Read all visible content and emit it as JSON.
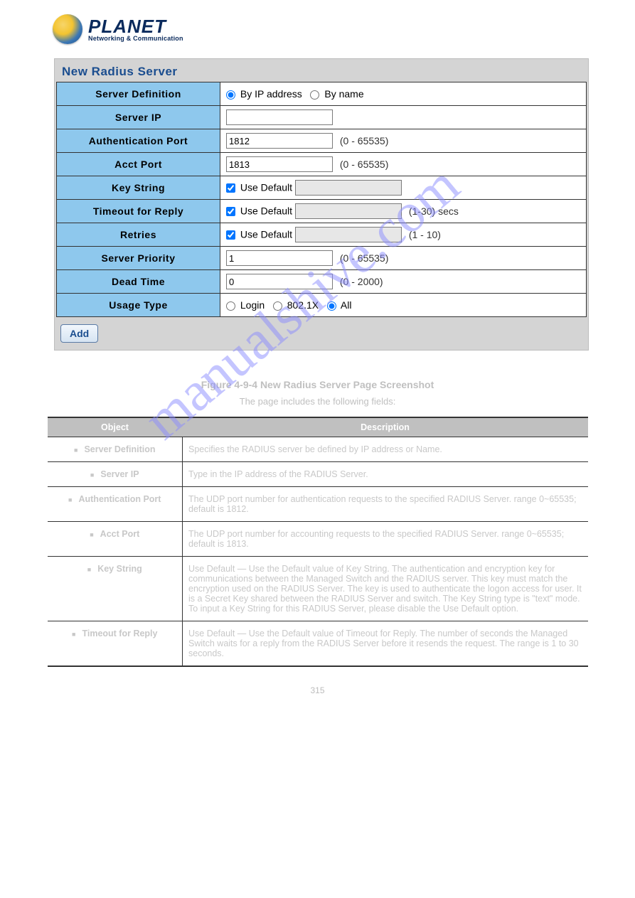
{
  "logo": {
    "brand": "PLANET",
    "tagline": "Networking & Communication"
  },
  "panel": {
    "title": "New Radius Server"
  },
  "rows": {
    "serverDefinition": {
      "label": "Server Definition",
      "byIp": "By IP address",
      "byName": "By name",
      "selected": "byIp"
    },
    "serverIp": {
      "label": "Server IP",
      "value": ""
    },
    "authPort": {
      "label": "Authentication Port",
      "value": "1812",
      "hint": "(0 - 65535)"
    },
    "acctPort": {
      "label": "Acct Port",
      "value": "1813",
      "hint": "(0 - 65535)"
    },
    "keyString": {
      "label": "Key String",
      "useDefault": "Use Default",
      "checked": true,
      "value": ""
    },
    "timeout": {
      "label": "Timeout for Reply",
      "useDefault": "Use Default",
      "checked": true,
      "value": "",
      "hint": "(1-30) secs"
    },
    "retries": {
      "label": "Retries",
      "useDefault": "Use Default",
      "checked": true,
      "value": "",
      "hint": "(1 - 10)"
    },
    "priority": {
      "label": "Server Priority",
      "value": "1",
      "hint": "(0 - 65535)"
    },
    "deadTime": {
      "label": "Dead Time",
      "value": "0",
      "hint": "(0 - 2000)"
    },
    "usageType": {
      "label": "Usage Type",
      "login": "Login",
      "dot1x": "802.1X",
      "all": "All",
      "selected": "all"
    }
  },
  "addButton": "Add",
  "watermark": "manualshive.com",
  "figure": {
    "caption": "Figure 4-9-4 New Radius Server Page Screenshot",
    "intro": "The page includes the following fields:",
    "headers": {
      "object": "Object",
      "description": "Description"
    },
    "items": [
      {
        "object": "Server Definition",
        "description": "Specifies the RADIUS server be defined by IP address or Name."
      },
      {
        "object": "Server IP",
        "description": "Type in the IP address of the RADIUS Server."
      },
      {
        "object": "Authentication Port",
        "description": "The UDP port number for authentication requests to the specified RADIUS Server. range 0~65535; default is 1812."
      },
      {
        "object": "Acct Port",
        "description": "The UDP port number for accounting requests to the specified RADIUS Server. range 0~65535; default is 1813."
      },
      {
        "object": "Key String",
        "description": "Use Default — Use the Default value of Key String.\nThe authentication and encryption key for communications between the Managed Switch and the RADIUS server. This key must match the encryption used on the RADIUS Server.\nThe key is used to authenticate the logon access for user. It is a Secret Key shared between the RADIUS Server and switch. The Key String type is \"text\" mode.\nTo input a Key String for this RADIUS Server, please disable the Use Default option."
      },
      {
        "object": "Timeout for Reply",
        "description": "Use Default — Use the Default value of Timeout for Reply.\nThe number of seconds the Managed Switch waits for a reply from the RADIUS Server before it resends the request. The range is 1 to 30 seconds."
      }
    ]
  },
  "pageNumber": "315",
  "colors": {
    "headerBg": "#8ec8ed",
    "panelBg": "#d4d4d4",
    "titleColor": "#1a4d8f",
    "border": "#333333"
  }
}
